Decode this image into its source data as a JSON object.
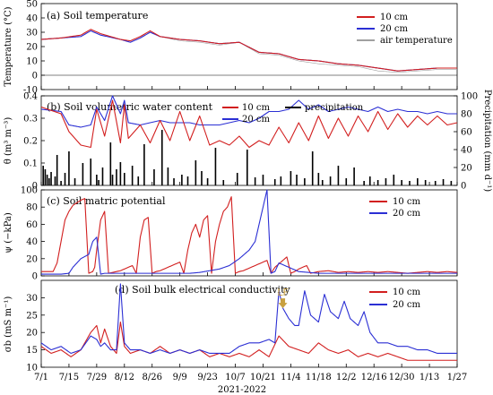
{
  "figure": {
    "x_tick_labels": [
      "7/1",
      "7/15",
      "7/29",
      "8/12",
      "8/26",
      "9/9",
      "9/23",
      "10/7",
      "10/21",
      "11/4",
      "11/18",
      "12/2",
      "12/16",
      "12/30",
      "1/13",
      "1/27"
    ],
    "x_axis_label": "2021-2022"
  },
  "chart_data": [
    {
      "type": "line",
      "title": "(a) Soil temperature",
      "ylabel": "Temperature (°C)",
      "ylim": [
        -10,
        50
      ],
      "yticks": [
        -10,
        0,
        10,
        20,
        30,
        40,
        50
      ],
      "x_range_days": [
        0,
        210
      ],
      "legend_position": "top-right",
      "colors": {
        "10 cm": "#d21f1f",
        "20 cm": "#2b2fd4",
        "air temperature": "#a0a0a0"
      },
      "series": [
        {
          "name": "air temperature",
          "days": [
            0,
            10,
            20,
            25,
            30,
            40,
            45,
            50,
            55,
            60,
            70,
            80,
            90,
            100,
            110,
            120,
            130,
            140,
            150,
            160,
            170,
            180,
            190,
            200,
            210
          ],
          "values": [
            25,
            26,
            27,
            31,
            28,
            25,
            23,
            26,
            30,
            27,
            24,
            23,
            21,
            23,
            15,
            14,
            10,
            8,
            7,
            6,
            3,
            2,
            3,
            4,
            4
          ],
          "amplitude": [
            7,
            7,
            8,
            8,
            7,
            7,
            7,
            7,
            8,
            7,
            7,
            7,
            7,
            7,
            7,
            6,
            6,
            6,
            6,
            5,
            5,
            5,
            5,
            5,
            5
          ]
        },
        {
          "name": "20 cm",
          "days": [
            0,
            10,
            20,
            25,
            30,
            40,
            45,
            50,
            55,
            60,
            70,
            80,
            90,
            100,
            110,
            120,
            130,
            140,
            150,
            160,
            170,
            180,
            190,
            200,
            210
          ],
          "values": [
            25,
            26,
            27,
            31,
            28,
            25,
            23,
            26,
            30,
            27,
            25,
            24,
            22,
            23,
            16,
            15,
            11,
            10,
            8,
            7,
            5,
            3,
            4,
            5,
            5
          ],
          "amplitude": [
            2,
            2,
            2,
            3,
            2,
            2,
            2,
            2,
            3,
            2,
            2,
            2,
            2,
            2,
            2,
            2,
            2,
            2,
            2,
            2,
            2,
            2,
            2,
            2,
            2
          ]
        },
        {
          "name": "10 cm",
          "days": [
            0,
            10,
            20,
            25,
            30,
            40,
            45,
            50,
            55,
            60,
            70,
            80,
            90,
            100,
            110,
            120,
            130,
            140,
            150,
            160,
            170,
            180,
            190,
            200,
            210
          ],
          "values": [
            25,
            26,
            28,
            32,
            29,
            25,
            24,
            27,
            31,
            27,
            25,
            24,
            22,
            23,
            16,
            15,
            11,
            10,
            8,
            7,
            5,
            3,
            4,
            5,
            5
          ],
          "amplitude": [
            3,
            3,
            4,
            5,
            4,
            3,
            3,
            4,
            5,
            3,
            3,
            3,
            3,
            2,
            2,
            2,
            2,
            2,
            2,
            2,
            2,
            2,
            2,
            2,
            2
          ]
        }
      ]
    },
    {
      "type": "line",
      "title": "(b) Soil volumetric water content",
      "ylabel": "θ (m³ m⁻³)",
      "ylim": [
        0,
        0.4
      ],
      "yticks": [
        0,
        0.1,
        0.2,
        0.3,
        0.4
      ],
      "y2label": "Precipitation (mm d⁻¹)",
      "y2lim": [
        0,
        100
      ],
      "y2ticks": [
        0,
        20,
        40,
        60,
        80,
        100
      ],
      "legend_position": "top-center",
      "colors": {
        "10 cm": "#d21f1f",
        "20 cm": "#2b2fd4",
        "precipitation": "#000000"
      },
      "series": [
        {
          "name": "20 cm",
          "days": [
            0,
            10,
            14,
            20,
            25,
            28,
            32,
            36,
            40,
            42,
            44,
            50,
            55,
            60,
            65,
            70,
            75,
            80,
            85,
            90,
            95,
            100,
            105,
            110,
            115,
            120,
            125,
            130,
            135,
            140,
            145,
            150,
            155,
            160,
            165,
            170,
            175,
            180,
            185,
            190,
            195,
            200,
            205,
            210
          ],
          "values": [
            0.34,
            0.33,
            0.27,
            0.26,
            0.27,
            0.35,
            0.29,
            0.4,
            0.32,
            0.38,
            0.28,
            0.27,
            0.28,
            0.29,
            0.28,
            0.28,
            0.28,
            0.27,
            0.27,
            0.27,
            0.28,
            0.29,
            0.28,
            0.3,
            0.33,
            0.33,
            0.34,
            0.38,
            0.34,
            0.36,
            0.33,
            0.34,
            0.35,
            0.34,
            0.33,
            0.35,
            0.33,
            0.34,
            0.33,
            0.33,
            0.32,
            0.33,
            0.32,
            0.32
          ]
        },
        {
          "name": "10 cm",
          "days": [
            0,
            10,
            14,
            20,
            25,
            28,
            32,
            36,
            40,
            42,
            44,
            50,
            55,
            60,
            65,
            70,
            75,
            80,
            85,
            90,
            95,
            100,
            105,
            110,
            115,
            120,
            125,
            130,
            135,
            140,
            145,
            150,
            155,
            160,
            165,
            170,
            175,
            180,
            185,
            190,
            195,
            200,
            205,
            210
          ],
          "values": [
            0.35,
            0.32,
            0.24,
            0.18,
            0.17,
            0.34,
            0.22,
            0.38,
            0.19,
            0.36,
            0.21,
            0.27,
            0.19,
            0.29,
            0.2,
            0.33,
            0.2,
            0.31,
            0.18,
            0.2,
            0.18,
            0.22,
            0.17,
            0.2,
            0.18,
            0.26,
            0.19,
            0.28,
            0.2,
            0.31,
            0.21,
            0.3,
            0.22,
            0.31,
            0.24,
            0.33,
            0.25,
            0.32,
            0.26,
            0.31,
            0.27,
            0.31,
            0.27,
            0.28
          ]
        },
        {
          "name": "precipitation",
          "type": "bar",
          "days": [
            1,
            2,
            3,
            4,
            5,
            7,
            8,
            10,
            12,
            14,
            17,
            21,
            25,
            28,
            29,
            31,
            35,
            36,
            38,
            40,
            42,
            46,
            49,
            52,
            57,
            61,
            64,
            67,
            71,
            74,
            78,
            81,
            84,
            88,
            92,
            99,
            104,
            108,
            112,
            118,
            121,
            126,
            129,
            133,
            137,
            140,
            142,
            146,
            150,
            154,
            158,
            163,
            166,
            170,
            174,
            178,
            182,
            186,
            190,
            194,
            199,
            203,
            207
          ],
          "values": [
            22,
            18,
            12,
            8,
            15,
            10,
            34,
            5,
            14,
            38,
            8,
            25,
            30,
            12,
            6,
            20,
            48,
            12,
            18,
            26,
            14,
            22,
            10,
            46,
            18,
            62,
            20,
            8,
            12,
            10,
            28,
            16,
            8,
            42,
            6,
            14,
            40,
            9,
            12,
            7,
            10,
            16,
            12,
            8,
            38,
            14,
            6,
            10,
            22,
            8,
            20,
            5,
            10,
            6,
            8,
            12,
            6,
            5,
            8,
            6,
            5,
            7,
            5
          ]
        }
      ]
    },
    {
      "type": "line",
      "title": "(c) Soil matric potential",
      "ylabel": "ψ (−kPa)",
      "ylim": [
        0,
        100
      ],
      "yticks": [
        0,
        20,
        40,
        60,
        80,
        100
      ],
      "legend_position": "top-right",
      "colors": {
        "10 cm": "#d21f1f",
        "20 cm": "#2b2fd4"
      },
      "series": [
        {
          "name": "10 cm",
          "days": [
            0,
            6,
            8,
            10,
            12,
            14,
            16,
            18,
            20,
            22,
            24,
            26,
            27,
            28,
            30,
            32,
            34,
            36,
            38,
            40,
            42,
            44,
            46,
            48,
            50,
            52,
            54,
            56,
            58,
            60,
            62,
            64,
            66,
            68,
            70,
            72,
            74,
            76,
            78,
            80,
            82,
            84,
            86,
            88,
            90,
            92,
            94,
            96,
            98,
            100,
            102,
            104,
            106,
            108,
            110,
            112,
            114,
            116,
            118,
            120,
            122,
            124,
            126,
            128,
            130,
            132,
            134,
            136,
            138,
            140,
            145,
            150,
            155,
            160,
            165,
            170,
            175,
            180,
            185,
            190,
            195,
            200,
            205,
            210
          ],
          "values": [
            5,
            5,
            15,
            40,
            65,
            75,
            82,
            85,
            88,
            90,
            3,
            5,
            10,
            30,
            65,
            75,
            3,
            4,
            5,
            6,
            8,
            10,
            12,
            3,
            45,
            65,
            68,
            3,
            5,
            6,
            8,
            10,
            12,
            14,
            16,
            3,
            30,
            50,
            60,
            45,
            65,
            70,
            3,
            40,
            60,
            75,
            80,
            92,
            3,
            5,
            6,
            8,
            10,
            12,
            14,
            16,
            18,
            3,
            10,
            14,
            18,
            22,
            3,
            5,
            8,
            10,
            12,
            3,
            4,
            5,
            6,
            4,
            5,
            4,
            5,
            4,
            5,
            4,
            3,
            4,
            5,
            4,
            5,
            4
          ]
        },
        {
          "name": "20 cm",
          "days": [
            0,
            10,
            14,
            16,
            18,
            20,
            24,
            26,
            28,
            30,
            32,
            34,
            36,
            40,
            45,
            50,
            55,
            60,
            65,
            70,
            75,
            80,
            85,
            90,
            95,
            100,
            105,
            108,
            110,
            112,
            114,
            116,
            118,
            120,
            125,
            130,
            135,
            140,
            145,
            150,
            155,
            160,
            165,
            170,
            175,
            180,
            185,
            190,
            195,
            200,
            205,
            210
          ],
          "values": [
            2,
            2,
            3,
            10,
            15,
            20,
            25,
            40,
            45,
            2,
            3,
            3,
            3,
            3,
            3,
            3,
            3,
            3,
            3,
            3,
            3,
            4,
            6,
            8,
            12,
            20,
            30,
            40,
            60,
            80,
            100,
            3,
            5,
            15,
            10,
            5,
            4,
            3,
            3,
            3,
            3,
            3,
            3,
            3,
            3,
            3,
            3,
            3,
            3,
            3,
            3,
            3
          ]
        }
      ]
    },
    {
      "type": "line",
      "title": "(d) Soil bulk electrical conductivity",
      "ylabel": "σb (mS m⁻¹)",
      "ylim": [
        10,
        35
      ],
      "yticks": [
        10,
        15,
        20,
        25,
        30
      ],
      "legend_position": "top-right",
      "annotations": [
        {
          "text": "LF",
          "day": 122,
          "value": 28,
          "color": "#c8a040"
        }
      ],
      "colors": {
        "10 cm": "#d21f1f",
        "20 cm": "#2b2fd4"
      },
      "series": [
        {
          "name": "10 cm",
          "days": [
            0,
            5,
            10,
            15,
            20,
            25,
            28,
            30,
            32,
            35,
            38,
            40,
            42,
            45,
            50,
            55,
            60,
            65,
            70,
            75,
            80,
            85,
            90,
            95,
            100,
            105,
            110,
            115,
            120,
            125,
            130,
            135,
            140,
            145,
            150,
            155,
            160,
            165,
            170,
            175,
            180,
            185,
            190,
            195,
            200,
            205,
            210
          ],
          "values": [
            16,
            14,
            15,
            13,
            15,
            20,
            22,
            17,
            21,
            16,
            14,
            23,
            16,
            14,
            15,
            14,
            16,
            14,
            15,
            14,
            15,
            13,
            14,
            13,
            14,
            13,
            15,
            13,
            19,
            16,
            15,
            14,
            17,
            15,
            14,
            15,
            13,
            14,
            13,
            14,
            13,
            12,
            12,
            12,
            12,
            12,
            12
          ]
        },
        {
          "name": "20 cm",
          "days": [
            0,
            5,
            10,
            15,
            20,
            25,
            28,
            30,
            32,
            35,
            38,
            40,
            42,
            45,
            50,
            55,
            60,
            65,
            70,
            75,
            80,
            85,
            90,
            95,
            100,
            105,
            110,
            115,
            118,
            120,
            122,
            125,
            128,
            130,
            133,
            136,
            140,
            143,
            146,
            150,
            153,
            156,
            160,
            163,
            166,
            170,
            175,
            180,
            185,
            190,
            195,
            200,
            205,
            210
          ],
          "values": [
            17,
            15,
            16,
            14,
            15,
            19,
            18,
            16,
            17,
            15,
            15,
            34,
            17,
            15,
            15,
            14,
            15,
            14,
            15,
            14,
            15,
            14,
            14,
            14,
            16,
            17,
            17,
            18,
            17,
            32,
            27,
            24,
            22,
            22,
            32,
            25,
            23,
            31,
            26,
            24,
            29,
            24,
            22,
            26,
            20,
            17,
            17,
            16,
            16,
            15,
            15,
            14,
            14,
            14
          ]
        }
      ]
    }
  ]
}
